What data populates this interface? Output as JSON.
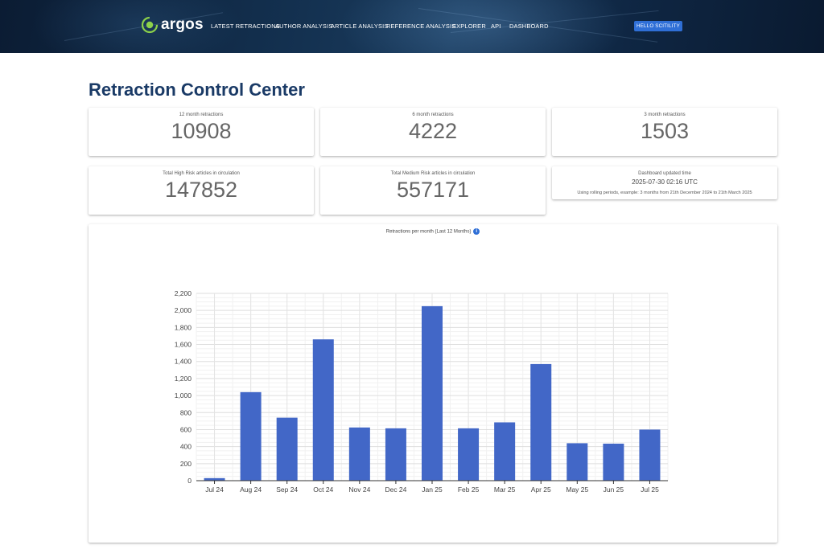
{
  "header": {
    "brand": "argos",
    "nav": [
      {
        "label": "LATEST RETRACTIONS",
        "name": "nav-latest-retractions"
      },
      {
        "label": "AUTHOR ANALYSIS",
        "name": "nav-author-analysis"
      },
      {
        "label": "ARTICLE ANALYSIS",
        "name": "nav-article-analysis"
      },
      {
        "label": "REFERENCE ANALYSIS",
        "name": "nav-reference-analysis"
      },
      {
        "label": "EXPLORER",
        "name": "nav-explorer"
      },
      {
        "label": "API",
        "name": "nav-api"
      },
      {
        "label": "DASHBOARD",
        "name": "nav-dashboard"
      }
    ],
    "user_button": "HELLO SCITILITY"
  },
  "page_title": "Retraction Control Center",
  "stats": {
    "m12": {
      "label": "12 month retractions",
      "value": "10908"
    },
    "m6": {
      "label": "6 month retractions",
      "value": "4222"
    },
    "m3": {
      "label": "3 month retractions",
      "value": "1503"
    },
    "high_risk": {
      "label": "Total High Risk articles in circulation",
      "value": "147852"
    },
    "medium_risk": {
      "label": "Total Medium Risk articles in circulation",
      "value": "557171"
    },
    "updated": {
      "label": "Dashboard updated time",
      "timestamp": "2025-07-30 02:16 UTC",
      "note": "Using rolling periods, example: 3 months from 21th December 2024 to 21th March 2025"
    }
  },
  "colors": {
    "accent": "#2f6fd6",
    "bar": "#4267c7",
    "title": "#1a3a66"
  },
  "chart_data": {
    "type": "bar",
    "title": "Retractions per month (Last 12 Months)",
    "info_icon": "info-icon",
    "categories": [
      "Jul 24",
      "Aug 24",
      "Sep 24",
      "Oct 24",
      "Nov 24",
      "Dec 24",
      "Jan 25",
      "Feb 25",
      "Mar 25",
      "Apr 25",
      "May 25",
      "Jun 25",
      "Jul 25"
    ],
    "values": [
      30,
      1040,
      740,
      1660,
      625,
      615,
      2050,
      615,
      685,
      1370,
      440,
      435,
      600
    ],
    "ylim": [
      0,
      2200
    ],
    "yticks": [
      0,
      200,
      400,
      600,
      800,
      1000,
      1200,
      1400,
      1600,
      1800,
      2000,
      2200
    ],
    "ytick_labels": [
      "0",
      "200",
      "400",
      "600",
      "800",
      "1,000",
      "1,200",
      "1,400",
      "1,600",
      "1,800",
      "2,000",
      "2,200"
    ],
    "grid": true,
    "xlabel": "",
    "ylabel": ""
  }
}
